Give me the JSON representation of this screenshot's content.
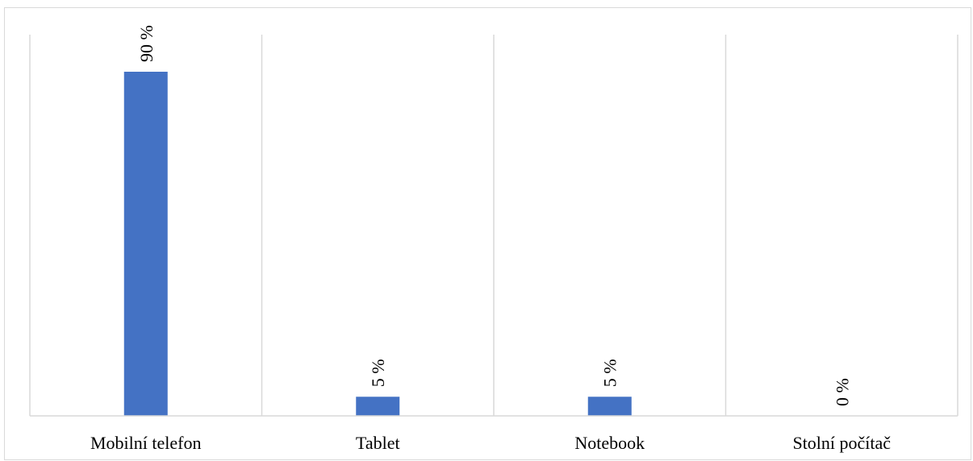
{
  "chart_data": {
    "type": "bar",
    "categories": [
      "Mobilní telefon",
      "Tablet",
      "Notebook",
      "Stolní počítač"
    ],
    "values": [
      90,
      5,
      5,
      0
    ],
    "data_labels": [
      "90 %",
      "5 %",
      "5 %",
      "0 %"
    ],
    "title": "",
    "xlabel": "",
    "ylabel": "",
    "ylim": [
      0,
      100
    ],
    "bar_color": "#4472C4",
    "grid": "vertical category separators",
    "legend": "none"
  }
}
